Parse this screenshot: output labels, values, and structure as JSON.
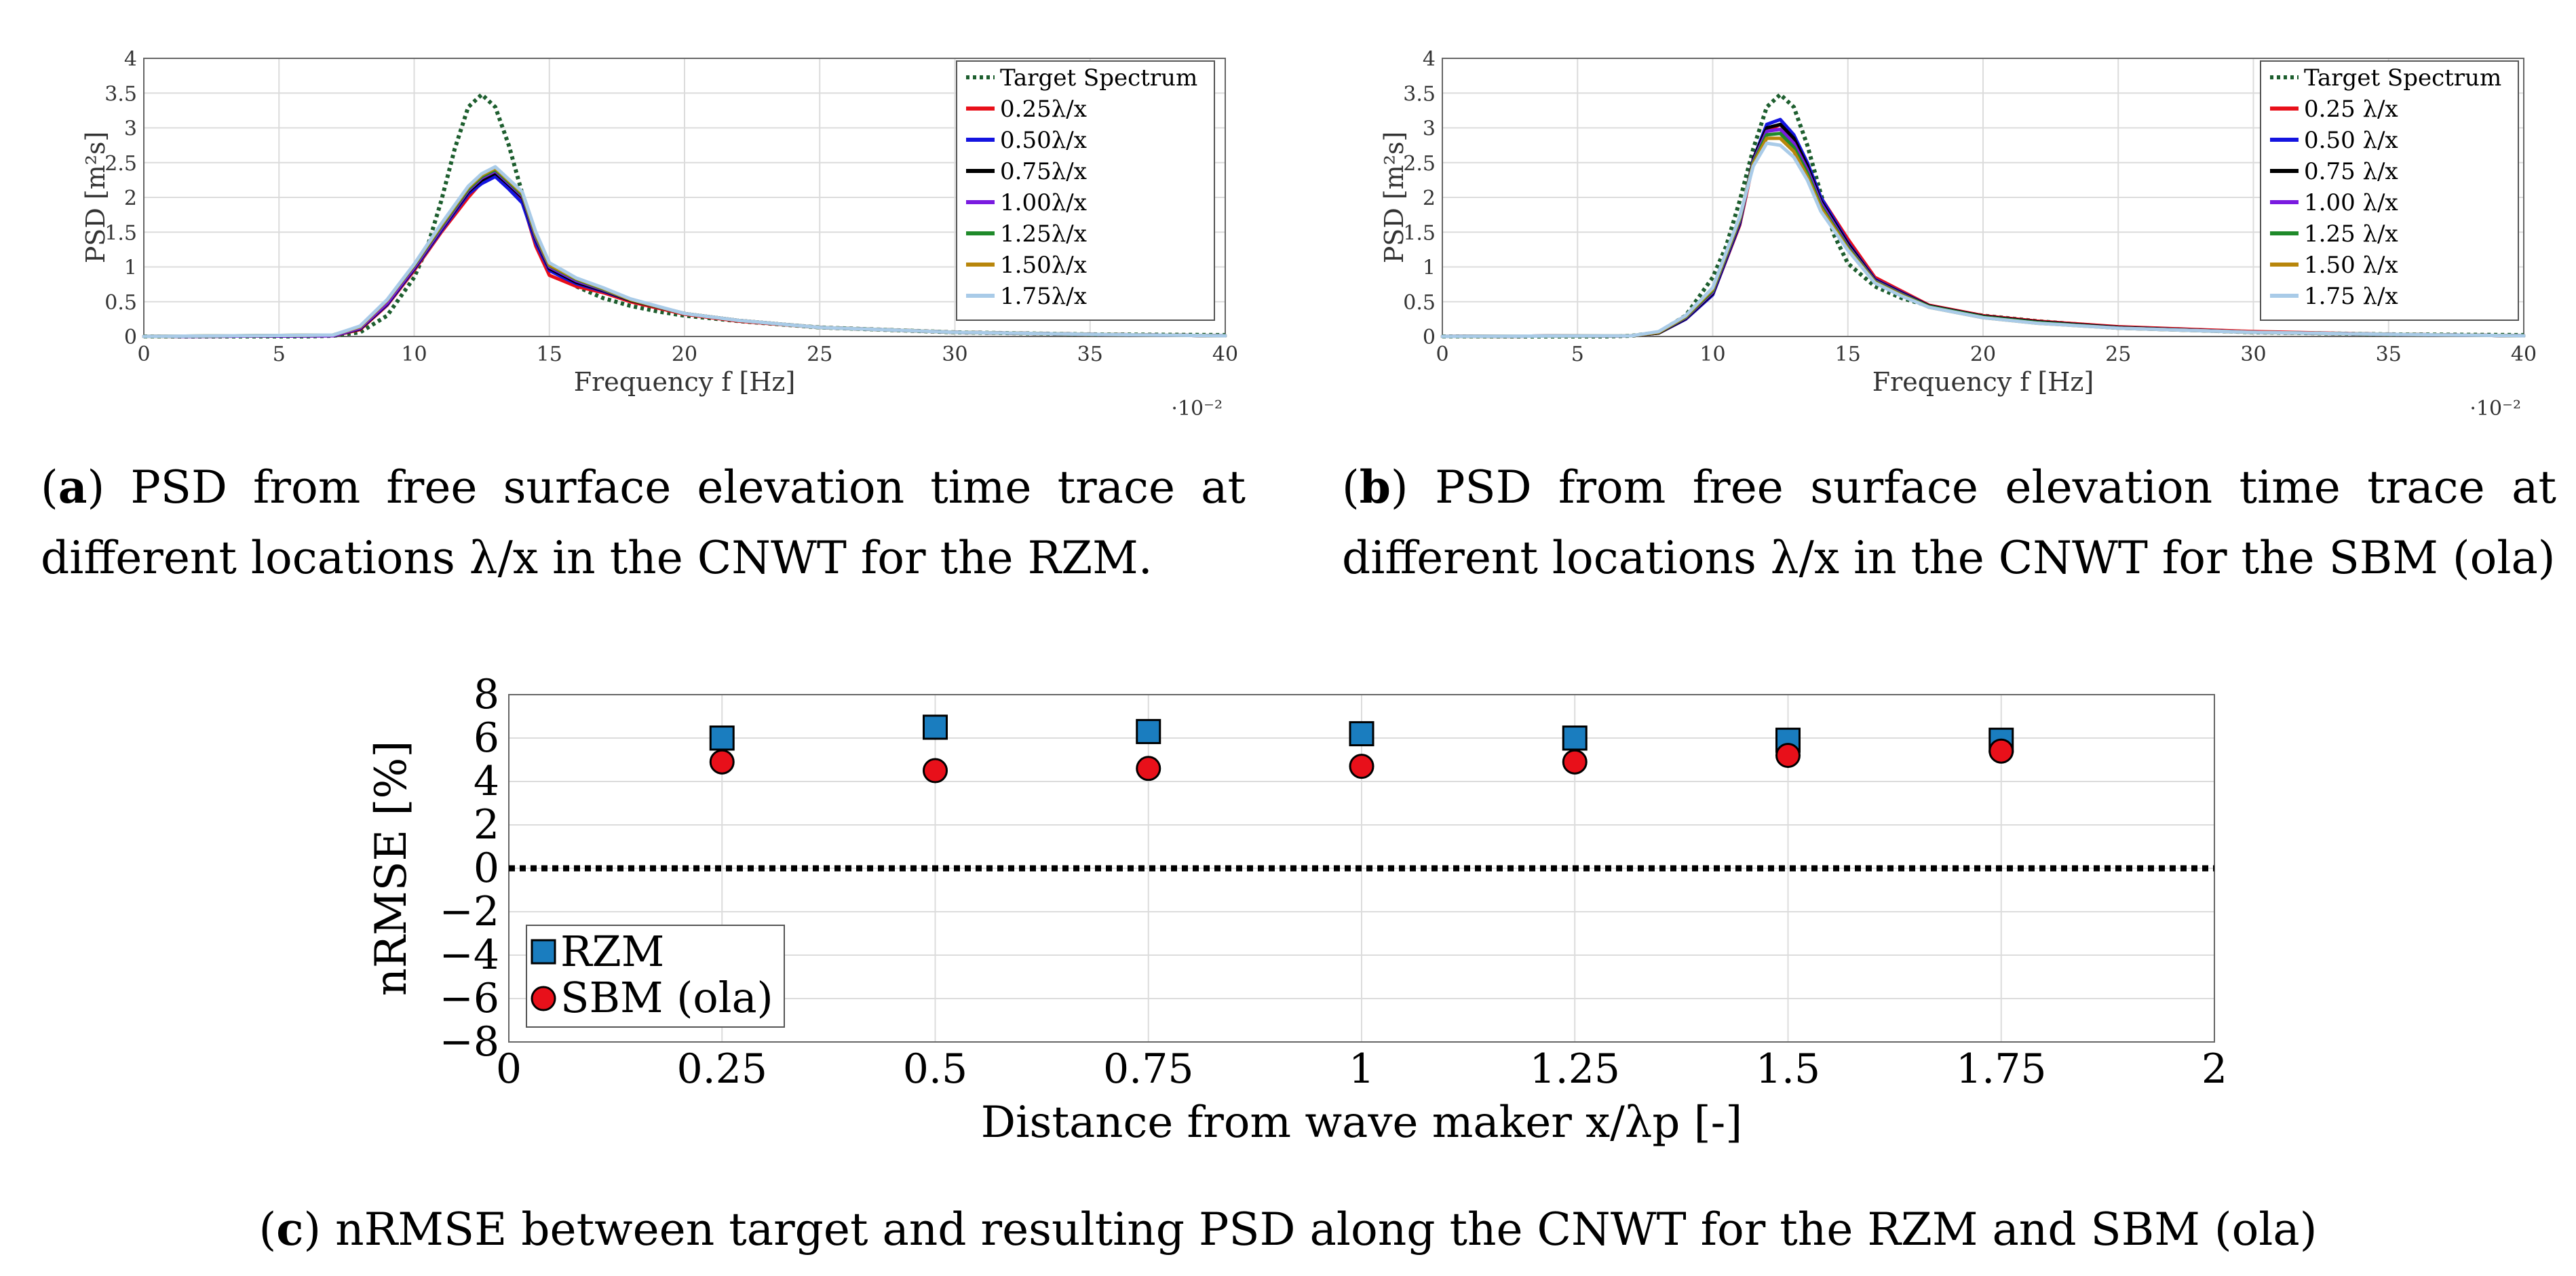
{
  "chart_data": [
    {
      "id": "a",
      "type": "line",
      "xlabel": "Frequency f [Hz]",
      "ylabel": "PSD [m²s]",
      "x_scale_note": "·10⁻²",
      "xlim": [
        0,
        40
      ],
      "ylim": [
        0,
        4
      ],
      "xticks": [
        0,
        5,
        10,
        15,
        20,
        25,
        30,
        35,
        40
      ],
      "yticks": [
        0,
        0.5,
        1,
        1.5,
        2,
        2.5,
        3,
        3.5,
        4
      ],
      "xtick_labels": [
        "0",
        "5",
        "10",
        "15",
        "20",
        "25",
        "30",
        "35",
        "40"
      ],
      "ytick_labels": [
        "0",
        "0.5",
        "1",
        "1.5",
        "2",
        "2.5",
        "3",
        "3.5",
        "4"
      ],
      "legend_position": "top-right",
      "series": [
        {
          "name": "Target Spectrum",
          "legend": "Target Spectrum",
          "color": "#1d5e2e",
          "style": "dotted",
          "x": [
            0,
            6,
            7,
            8,
            9,
            10,
            10.5,
            11,
            11.5,
            12,
            12.5,
            13,
            13.5,
            14,
            14.5,
            15,
            16,
            17,
            18,
            19,
            20,
            22,
            25,
            30,
            35,
            40
          ],
          "y": [
            0,
            0,
            0.01,
            0.06,
            0.3,
            0.85,
            1.3,
            1.95,
            2.7,
            3.3,
            3.48,
            3.3,
            2.75,
            2.05,
            1.45,
            1.05,
            0.72,
            0.55,
            0.44,
            0.36,
            0.3,
            0.22,
            0.13,
            0.06,
            0.03,
            0.02
          ]
        },
        {
          "name": "0.25",
          "legend": "0.25λ/x",
          "color": "#e8101a",
          "style": "solid",
          "x": [
            0,
            7,
            8,
            9,
            10,
            11,
            12,
            12.5,
            13,
            13.5,
            14,
            14.5,
            15,
            15.5,
            16,
            17,
            18,
            20,
            22,
            25,
            30,
            35,
            40
          ],
          "y": [
            0,
            0.01,
            0.1,
            0.45,
            0.95,
            1.5,
            2.0,
            2.22,
            2.33,
            2.15,
            1.95,
            1.3,
            0.88,
            0.8,
            0.72,
            0.63,
            0.5,
            0.32,
            0.22,
            0.13,
            0.06,
            0.03,
            0.01
          ]
        },
        {
          "name": "0.50",
          "legend": "0.50λ/x",
          "color": "#1414e0",
          "style": "solid",
          "x": [
            0,
            7,
            8,
            9,
            10,
            11,
            12,
            12.5,
            13,
            13.5,
            14,
            14.5,
            15,
            15.5,
            16,
            17,
            18,
            20,
            22,
            25,
            30,
            35,
            40
          ],
          "y": [
            0,
            0.01,
            0.11,
            0.46,
            0.97,
            1.52,
            2.05,
            2.2,
            2.3,
            2.12,
            1.92,
            1.35,
            0.95,
            0.85,
            0.76,
            0.65,
            0.52,
            0.33,
            0.23,
            0.13,
            0.06,
            0.03,
            0.01
          ]
        },
        {
          "name": "0.75",
          "legend": "0.75λ/x",
          "color": "#000000",
          "style": "solid",
          "x": [
            0,
            7,
            8,
            9,
            10,
            11,
            12,
            12.5,
            13,
            13.5,
            14,
            14.5,
            15,
            15.5,
            16,
            17,
            18,
            20,
            22,
            25,
            30,
            35,
            40
          ],
          "y": [
            0,
            0.01,
            0.11,
            0.47,
            0.98,
            1.54,
            2.08,
            2.25,
            2.35,
            2.18,
            2.0,
            1.4,
            0.98,
            0.88,
            0.78,
            0.66,
            0.52,
            0.33,
            0.23,
            0.13,
            0.06,
            0.03,
            0.01
          ]
        },
        {
          "name": "1.00",
          "legend": "1.00λ/x",
          "color": "#7a1be0",
          "style": "solid",
          "x": [
            0,
            7,
            8,
            9,
            10,
            11,
            12,
            12.5,
            13,
            13.5,
            14,
            14.5,
            15,
            15.5,
            16,
            17,
            18,
            20,
            22,
            25,
            30,
            35,
            40
          ],
          "y": [
            0,
            0.01,
            0.12,
            0.48,
            0.99,
            1.55,
            2.1,
            2.28,
            2.38,
            2.2,
            2.02,
            1.42,
            1.0,
            0.9,
            0.8,
            0.67,
            0.53,
            0.33,
            0.23,
            0.13,
            0.06,
            0.03,
            0.01
          ]
        },
        {
          "name": "1.25",
          "legend": "1.25λ/x",
          "color": "#1f8a2a",
          "style": "solid",
          "x": [
            0,
            7,
            8,
            9,
            10,
            11,
            12,
            12.5,
            13,
            13.5,
            14,
            14.5,
            15,
            15.5,
            16,
            17,
            18,
            20,
            22,
            25,
            30,
            35,
            40
          ],
          "y": [
            0,
            0.02,
            0.14,
            0.52,
            1.02,
            1.58,
            2.12,
            2.3,
            2.4,
            2.22,
            2.04,
            1.45,
            1.02,
            0.92,
            0.82,
            0.68,
            0.53,
            0.33,
            0.23,
            0.13,
            0.06,
            0.03,
            0.01
          ]
        },
        {
          "name": "1.50",
          "legend": "1.50λ/x",
          "color": "#b8860b",
          "style": "solid",
          "x": [
            0,
            7,
            8,
            9,
            10,
            11,
            12,
            12.5,
            13,
            13.5,
            14,
            14.5,
            15,
            15.5,
            16,
            17,
            18,
            20,
            22,
            25,
            30,
            35,
            40
          ],
          "y": [
            0,
            0.02,
            0.14,
            0.52,
            1.03,
            1.6,
            2.14,
            2.32,
            2.42,
            2.24,
            2.06,
            1.47,
            1.03,
            0.93,
            0.83,
            0.69,
            0.53,
            0.33,
            0.23,
            0.13,
            0.06,
            0.03,
            0.01
          ]
        },
        {
          "name": "1.75",
          "legend": "1.75λ/x",
          "color": "#a9cbe8",
          "style": "solid",
          "x": [
            0,
            7,
            8,
            9,
            10,
            11,
            12,
            12.5,
            13,
            13.5,
            14,
            14.5,
            15,
            15.5,
            16,
            17,
            18,
            20,
            22,
            25,
            30,
            35,
            40
          ],
          "y": [
            0,
            0.02,
            0.15,
            0.53,
            1.04,
            1.62,
            2.16,
            2.34,
            2.44,
            2.26,
            2.08,
            1.5,
            1.06,
            0.95,
            0.84,
            0.7,
            0.54,
            0.33,
            0.23,
            0.13,
            0.06,
            0.03,
            0.01
          ]
        }
      ]
    },
    {
      "id": "b",
      "type": "line",
      "xlabel": "Frequency f [Hz]",
      "ylabel": "PSD [m²s]",
      "x_scale_note": "·10⁻²",
      "xlim": [
        0,
        40
      ],
      "ylim": [
        0,
        4
      ],
      "xticks": [
        0,
        5,
        10,
        15,
        20,
        25,
        30,
        35,
        40
      ],
      "yticks": [
        0,
        0.5,
        1,
        1.5,
        2,
        2.5,
        3,
        3.5,
        4
      ],
      "xtick_labels": [
        "0",
        "5",
        "10",
        "15",
        "20",
        "25",
        "30",
        "35",
        "40"
      ],
      "ytick_labels": [
        "0",
        "0.5",
        "1",
        "1.5",
        "2",
        "2.5",
        "3",
        "3.5",
        "4"
      ],
      "legend_position": "top-right",
      "series": [
        {
          "name": "Target Spectrum",
          "legend": "Target Spectrum",
          "color": "#1d5e2e",
          "style": "dotted",
          "x": [
            0,
            6,
            7,
            8,
            9,
            10,
            10.5,
            11,
            11.5,
            12,
            12.5,
            13,
            13.5,
            14,
            14.5,
            15,
            16,
            17,
            18,
            19,
            20,
            22,
            25,
            30,
            35,
            40
          ],
          "y": [
            0,
            0,
            0.01,
            0.06,
            0.3,
            0.85,
            1.3,
            1.95,
            2.7,
            3.3,
            3.48,
            3.3,
            2.75,
            2.05,
            1.45,
            1.05,
            0.72,
            0.55,
            0.44,
            0.36,
            0.3,
            0.22,
            0.13,
            0.06,
            0.03,
            0.02
          ]
        },
        {
          "name": "0.25",
          "legend": "0.25 λ/x",
          "color": "#e8101a",
          "style": "solid",
          "x": [
            0,
            7,
            8,
            9,
            10,
            11,
            11.5,
            12,
            12.5,
            13,
            13.5,
            14,
            15,
            16,
            17,
            18,
            20,
            22,
            25,
            30,
            35,
            40
          ],
          "y": [
            0,
            0.01,
            0.05,
            0.25,
            0.6,
            1.6,
            2.5,
            2.95,
            3.05,
            2.85,
            2.5,
            2.0,
            1.4,
            0.85,
            0.65,
            0.45,
            0.3,
            0.22,
            0.14,
            0.07,
            0.03,
            0.01
          ]
        },
        {
          "name": "0.50",
          "legend": "0.50 λ/x",
          "color": "#1414e0",
          "style": "solid",
          "x": [
            0,
            7,
            8,
            9,
            10,
            11,
            11.5,
            12,
            12.5,
            13,
            13.5,
            14,
            15,
            16,
            17,
            18,
            20,
            22,
            25,
            30,
            35,
            40
          ],
          "y": [
            0,
            0.01,
            0.05,
            0.25,
            0.6,
            1.62,
            2.55,
            3.05,
            3.12,
            2.9,
            2.5,
            2.0,
            1.35,
            0.82,
            0.63,
            0.44,
            0.29,
            0.21,
            0.13,
            0.06,
            0.03,
            0.01
          ]
        },
        {
          "name": "0.75",
          "legend": "0.75 λ/x",
          "color": "#000000",
          "style": "solid",
          "x": [
            0,
            7,
            8,
            9,
            10,
            11,
            11.5,
            12,
            12.5,
            13,
            13.5,
            14,
            15,
            16,
            17,
            18,
            20,
            22,
            25,
            30,
            35,
            40
          ],
          "y": [
            0,
            0.01,
            0.05,
            0.26,
            0.62,
            1.64,
            2.55,
            3.0,
            3.05,
            2.85,
            2.45,
            1.95,
            1.33,
            0.81,
            0.62,
            0.44,
            0.29,
            0.21,
            0.13,
            0.06,
            0.03,
            0.01
          ]
        },
        {
          "name": "1.00",
          "legend": "1.00 λ/x",
          "color": "#7a1be0",
          "style": "solid",
          "x": [
            0,
            7,
            8,
            9,
            10,
            11,
            11.5,
            12,
            12.5,
            13,
            13.5,
            14,
            15,
            16,
            17,
            18,
            20,
            22,
            25,
            30,
            35,
            40
          ],
          "y": [
            0,
            0.01,
            0.06,
            0.27,
            0.64,
            1.66,
            2.52,
            2.95,
            2.98,
            2.78,
            2.4,
            1.92,
            1.3,
            0.8,
            0.61,
            0.43,
            0.28,
            0.2,
            0.12,
            0.06,
            0.03,
            0.01
          ]
        },
        {
          "name": "1.25",
          "legend": "1.25 λ/x",
          "color": "#1f8a2a",
          "style": "solid",
          "x": [
            0,
            7,
            8,
            9,
            10,
            11,
            11.5,
            12,
            12.5,
            13,
            13.5,
            14,
            15,
            16,
            17,
            18,
            20,
            22,
            25,
            30,
            35,
            40
          ],
          "y": [
            0,
            0.01,
            0.06,
            0.28,
            0.66,
            1.68,
            2.5,
            2.9,
            2.92,
            2.72,
            2.35,
            1.88,
            1.28,
            0.79,
            0.6,
            0.43,
            0.28,
            0.2,
            0.12,
            0.06,
            0.03,
            0.01
          ]
        },
        {
          "name": "1.50",
          "legend": "1.50 λ/x",
          "color": "#b8860b",
          "style": "solid",
          "x": [
            0,
            7,
            8,
            9,
            10,
            11,
            11.5,
            12,
            12.5,
            13,
            13.5,
            14,
            15,
            16,
            17,
            18,
            20,
            22,
            25,
            30,
            35,
            40
          ],
          "y": [
            0,
            0.01,
            0.06,
            0.29,
            0.68,
            1.7,
            2.48,
            2.85,
            2.85,
            2.66,
            2.3,
            1.85,
            1.26,
            0.78,
            0.59,
            0.42,
            0.27,
            0.19,
            0.12,
            0.06,
            0.03,
            0.01
          ]
        },
        {
          "name": "1.75",
          "legend": "1.75 λ/x",
          "color": "#a9cbe8",
          "style": "solid",
          "x": [
            0,
            7,
            8,
            9,
            10,
            11,
            11.5,
            12,
            12.5,
            13,
            13.5,
            14,
            15,
            16,
            17,
            18,
            20,
            22,
            25,
            30,
            35,
            40
          ],
          "y": [
            0,
            0.01,
            0.07,
            0.3,
            0.7,
            1.72,
            2.45,
            2.78,
            2.75,
            2.58,
            2.25,
            1.8,
            1.24,
            0.77,
            0.58,
            0.42,
            0.27,
            0.19,
            0.12,
            0.06,
            0.03,
            0.01
          ]
        }
      ]
    },
    {
      "id": "c",
      "type": "scatter",
      "xlabel": "Distance from wave maker x/λp [-]",
      "ylabel": "nRMSE [%]",
      "xlim": [
        0,
        2
      ],
      "ylim": [
        -8,
        8
      ],
      "xticks": [
        0,
        0.25,
        0.5,
        0.75,
        1,
        1.25,
        1.5,
        1.75,
        2
      ],
      "yticks": [
        -8,
        -6,
        -4,
        -2,
        0,
        2,
        4,
        6,
        8
      ],
      "xtick_labels": [
        "0",
        "0.25",
        "0.5",
        "0.75",
        "1",
        "1.25",
        "1.5",
        "1.75",
        "2"
      ],
      "ytick_labels": [
        "−8",
        "−6",
        "−4",
        "−2",
        "0",
        "2",
        "4",
        "6",
        "8"
      ],
      "legend_position": "bottom-left",
      "zero_line": true,
      "series": [
        {
          "name": "RZM",
          "marker": "square",
          "color": "#1a7dbf",
          "x": [
            0.25,
            0.5,
            0.75,
            1.0,
            1.25,
            1.5,
            1.75
          ],
          "y": [
            6.0,
            6.5,
            6.3,
            6.2,
            6.0,
            5.9,
            5.9
          ]
        },
        {
          "name": "SBM (ola)",
          "marker": "circle",
          "color": "#e8101a",
          "x": [
            0.25,
            0.5,
            0.75,
            1.0,
            1.25,
            1.5,
            1.75
          ],
          "y": [
            4.9,
            4.5,
            4.6,
            4.7,
            4.9,
            5.2,
            5.4
          ]
        }
      ]
    }
  ],
  "captions": {
    "a": {
      "letter": "a",
      "text": "PSD from free surface elevation time trace at different locations λ/x in the CNWT for the RZM."
    },
    "b": {
      "letter": "b",
      "text": "PSD from free surface elevation time trace at different locations λ/x in the CNWT for the SBM (ola)"
    },
    "c": {
      "letter": "c",
      "text": "nRMSE between target and resulting PSD along the CNWT for the RZM and SBM (ola)"
    }
  }
}
